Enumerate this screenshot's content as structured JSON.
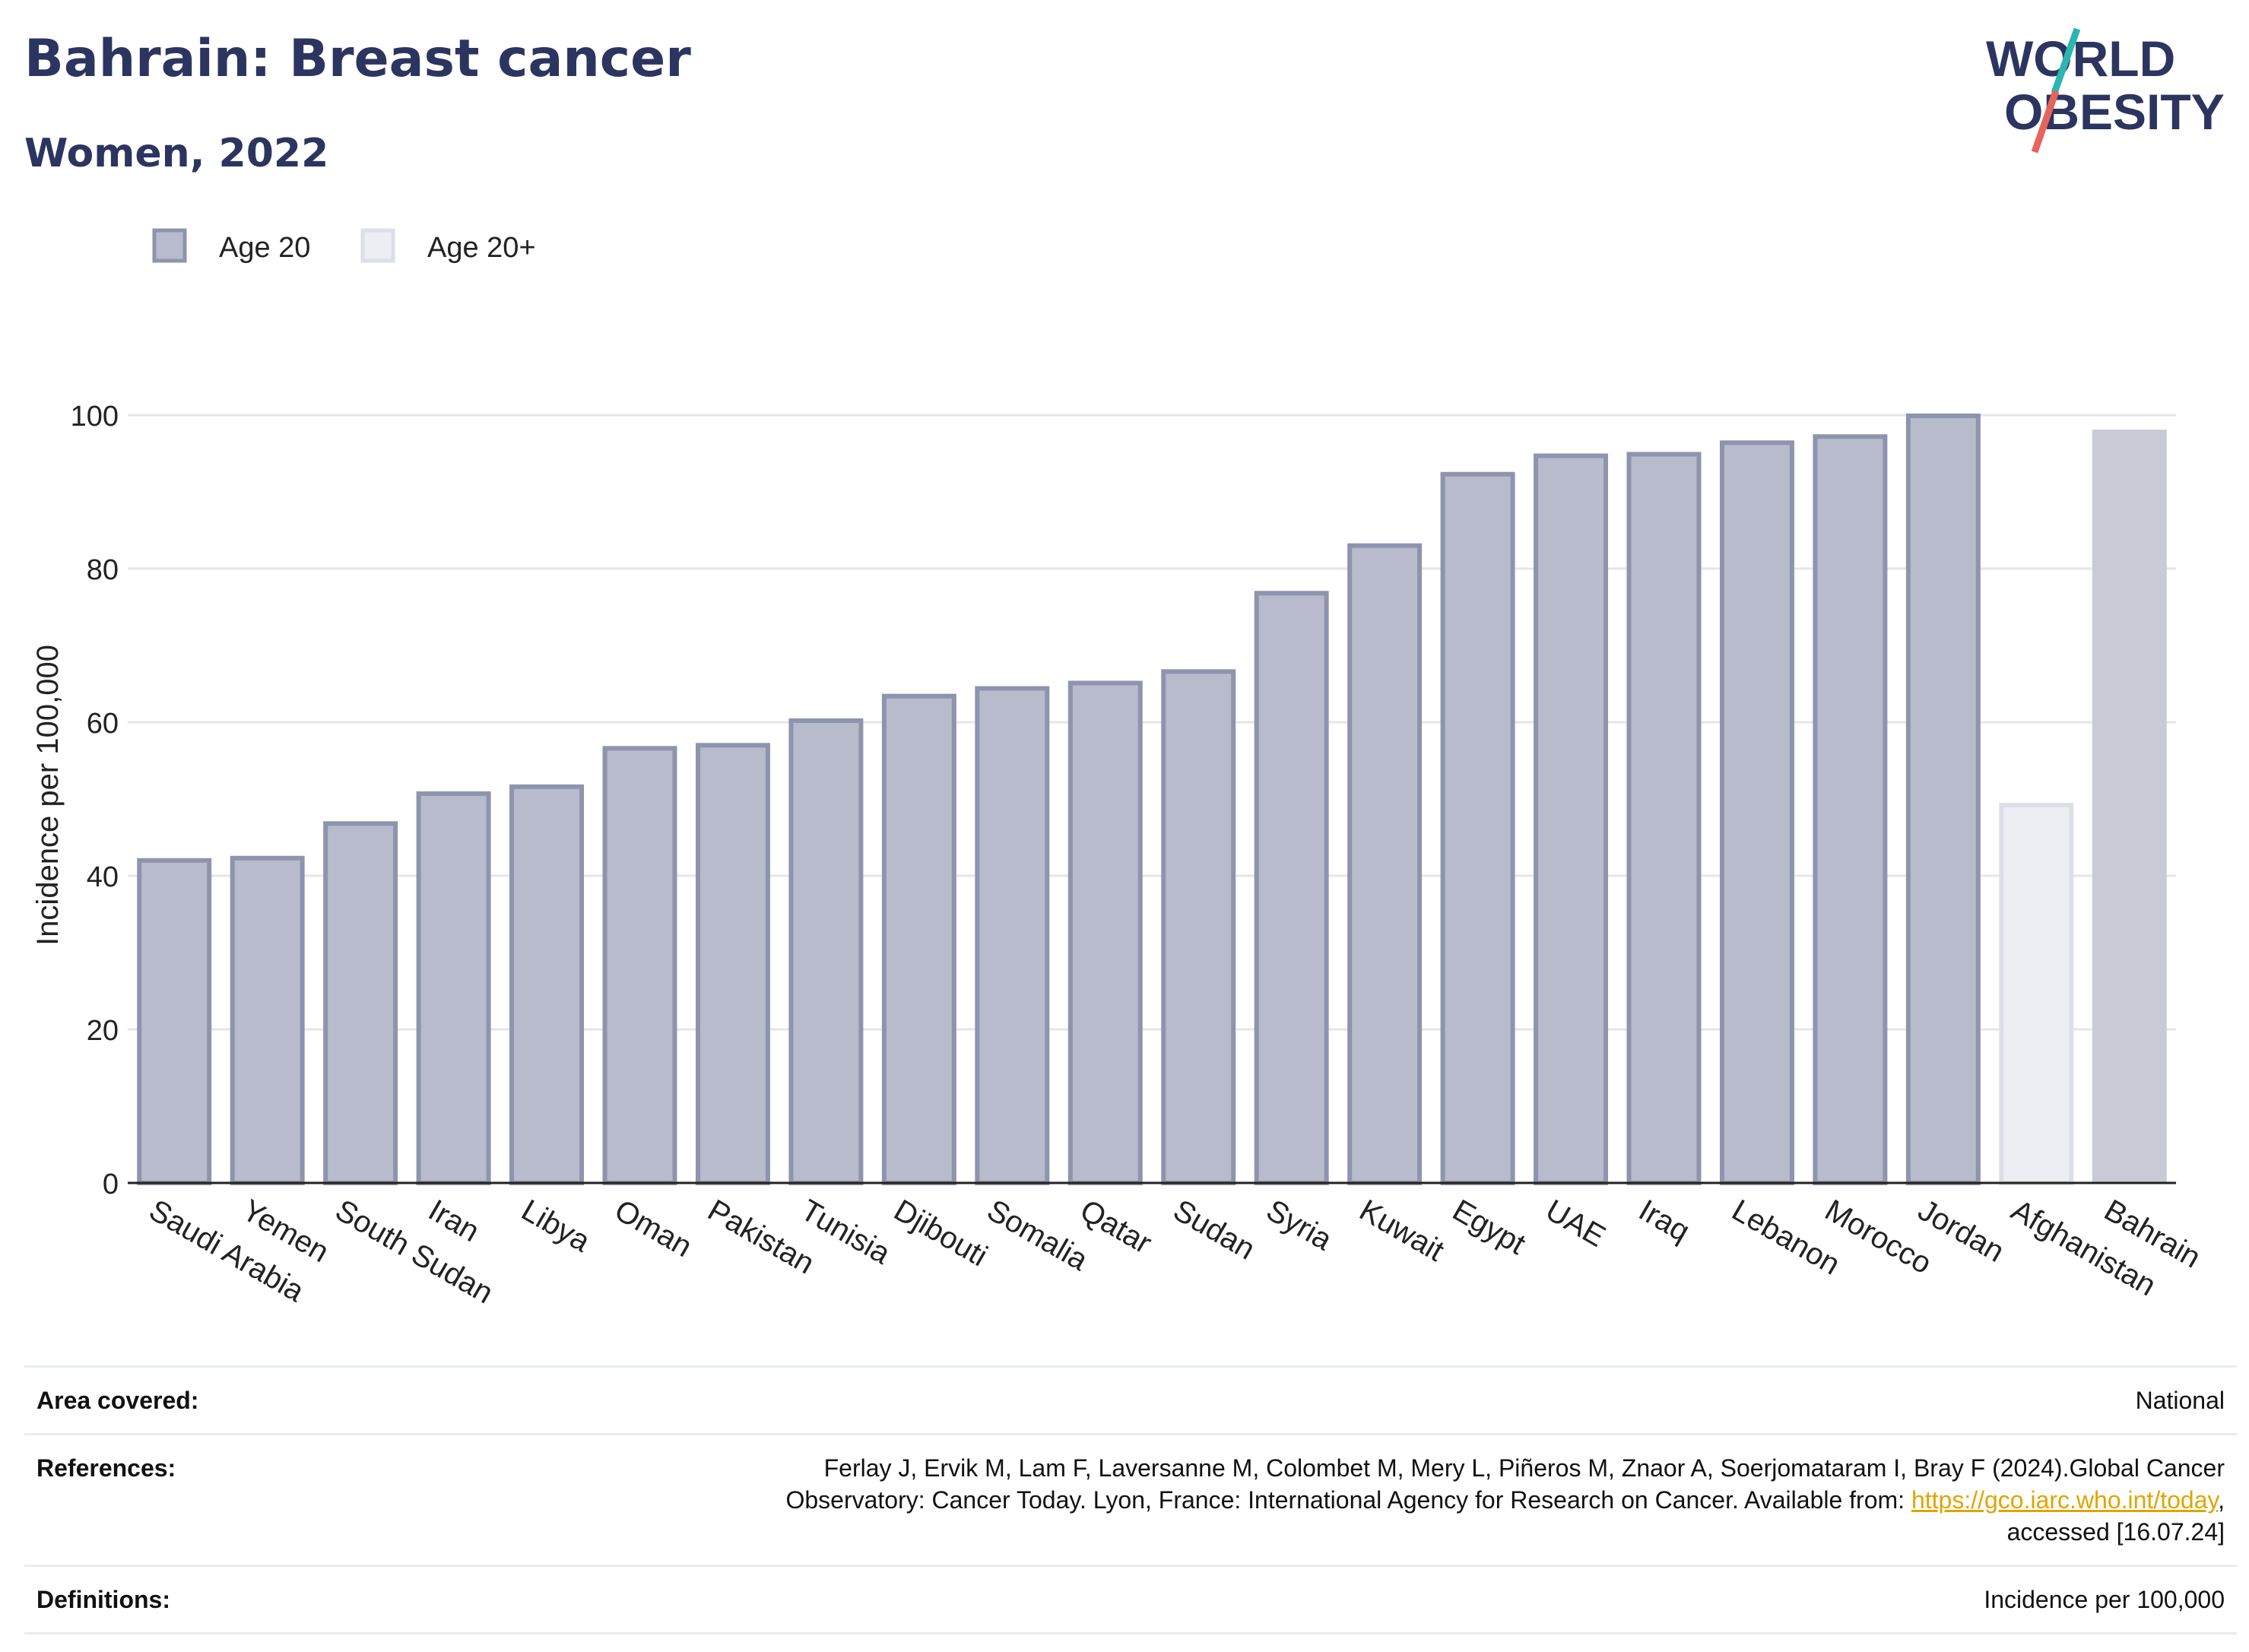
{
  "header": {
    "title": "Bahrain: Breast cancer",
    "subtitle": "Women, 2022"
  },
  "logo": {
    "line1": "WORLD",
    "line2": "OBESITY",
    "accent_colors": [
      "#2bb6b0",
      "#e8635a"
    ]
  },
  "chart_data": {
    "type": "bar",
    "ylabel": "Incidence per 100,000",
    "ylim": [
      0,
      110
    ],
    "yticks": [
      0,
      20,
      40,
      60,
      80,
      100
    ],
    "grid": true,
    "legend_position": "top-left",
    "legend": [
      {
        "label": "Age 20",
        "color": "#b7bbcb",
        "border": "#8e94ad"
      },
      {
        "label": "Age 20+",
        "color": "#eceef3",
        "border": "#dcdfe7"
      }
    ],
    "categories": [
      "Saudi Arabia",
      "Yemen",
      "South Sudan",
      "Iran",
      "Libya",
      "Oman",
      "Pakistan",
      "Tunisia",
      "Djibouti",
      "Somalia",
      "Qatar",
      "Sudan",
      "Syria",
      "Kuwait",
      "Egypt",
      "UAE",
      "Iraq",
      "Lebanon",
      "Morocco",
      "Jordan",
      "Afghanistan",
      "Bahrain"
    ],
    "values": [
      42.3,
      42.6,
      47.1,
      51.0,
      51.9,
      56.9,
      57.3,
      60.5,
      63.7,
      64.7,
      65.4,
      66.9,
      77.1,
      83.3,
      92.6,
      95.0,
      95.2,
      96.7,
      97.5,
      100.2,
      49.5,
      98.1
    ],
    "groups": [
      "Age 20",
      "Age 20",
      "Age 20",
      "Age 20",
      "Age 20",
      "Age 20",
      "Age 20",
      "Age 20",
      "Age 20",
      "Age 20",
      "Age 20",
      "Age 20",
      "Age 20",
      "Age 20",
      "Age 20",
      "Age 20",
      "Age 20",
      "Age 20",
      "Age 20",
      "Age 20",
      "Age 20+",
      "highlight"
    ],
    "colors": {
      "highlight": "#c8cbd6",
      "axis": "#222222",
      "grid": "#e6e6e6"
    }
  },
  "info": {
    "area_label": "Area covered:",
    "area_value": "National",
    "references_label": "References:",
    "references_text_1": "Ferlay J, Ervik M, Lam F, Laversanne M, Colombet M, Mery L, Piñeros M, Znaor A, Soerjomataram I, Bray F (2024).Global Cancer",
    "references_text_2": "Observatory: Cancer Today. Lyon, France: International Agency for Research on Cancer. Available from: ",
    "references_link": "https://gco.iarc.who.int/today",
    "references_text_3": ",",
    "references_text_4": "accessed [16.07.24]",
    "definitions_label": "Definitions:",
    "definitions_value": "Incidence per 100,000"
  }
}
